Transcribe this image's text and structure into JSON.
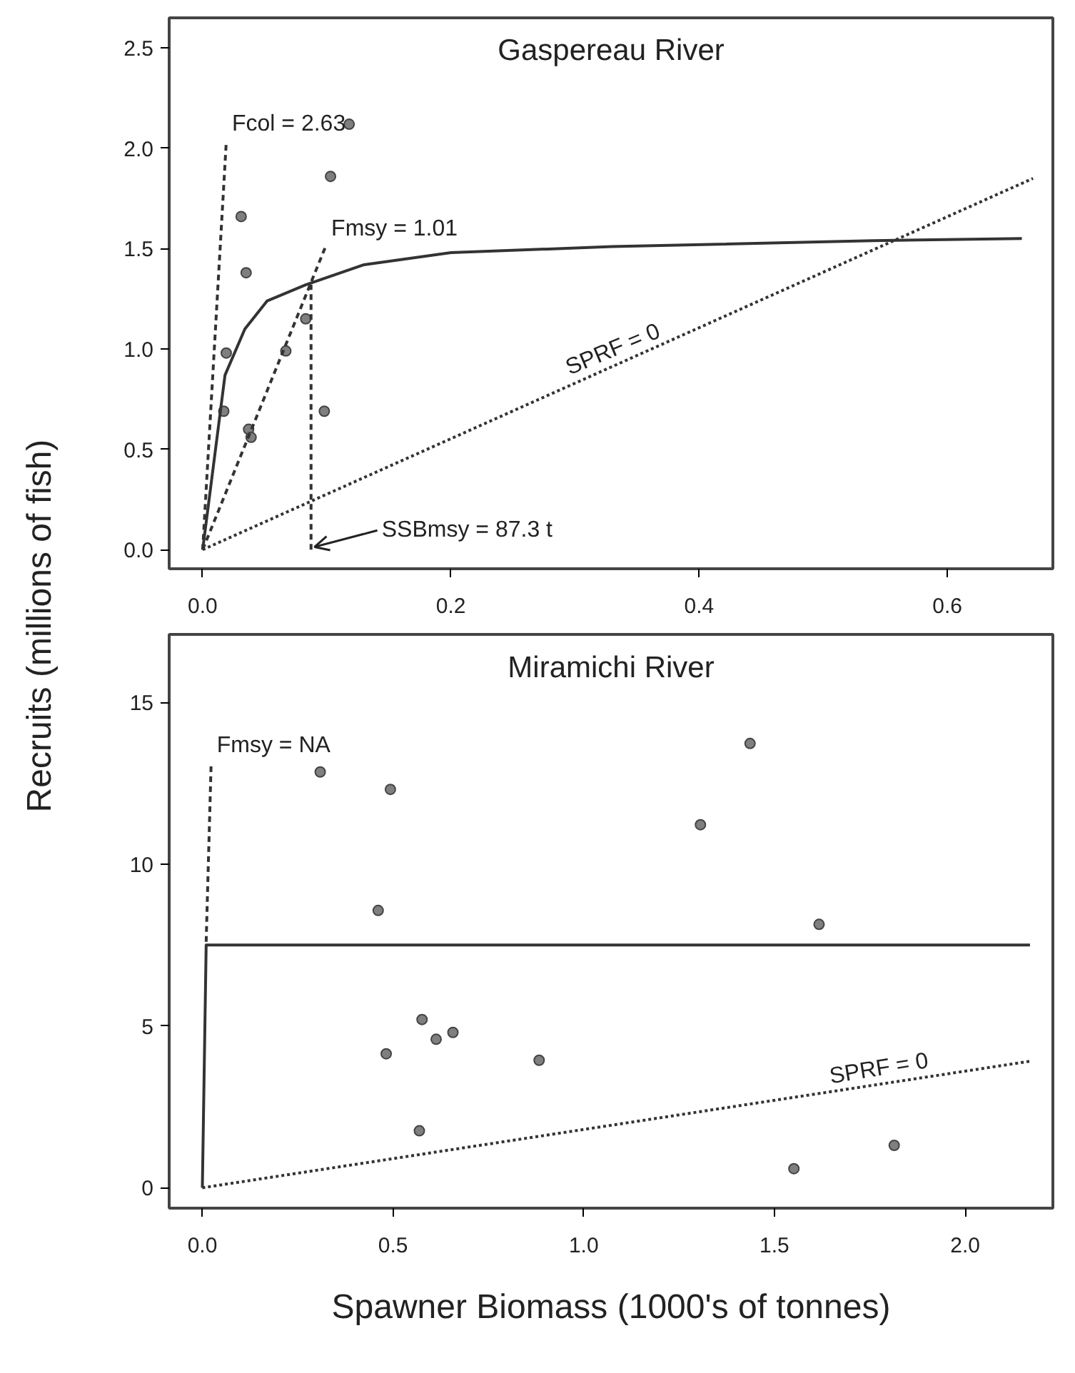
{
  "chart_data": [
    {
      "type": "scatter",
      "title": "Gaspereau River",
      "ylabel": "Recruits (millions of fish)",
      "xlim": [
        -0.027,
        0.685
      ],
      "ylim": [
        -0.095,
        2.65
      ],
      "xticks": [
        {
          "value": 0,
          "label": "0.0"
        },
        {
          "value": 0.2,
          "label": "0.2"
        },
        {
          "value": 0.4,
          "label": "0.4"
        },
        {
          "value": 0.6,
          "label": "0.6"
        }
      ],
      "yticks": [
        {
          "value": 0,
          "label": "0.0"
        },
        {
          "value": 0.5,
          "label": "0.5"
        },
        {
          "value": 1,
          "label": "1.0"
        },
        {
          "value": 1.5,
          "label": "1.5"
        },
        {
          "value": 2,
          "label": "2.0"
        },
        {
          "value": 2.5,
          "label": "2.5"
        }
      ],
      "grid": false,
      "series": [
        {
          "marker": "circle",
          "color": "#7f7f7f",
          "x": [
            0.031,
            0.035,
            0.019,
            0.017,
            0.037,
            0.039,
            0.067,
            0.083,
            0.098,
            0.103,
            0.118
          ],
          "values": [
            1.66,
            1.38,
            0.98,
            0.69,
            0.6,
            0.56,
            0.99,
            1.15,
            0.69,
            1.86,
            2.12
          ]
        },
        {
          "type": "line",
          "line_style": "solid",
          "color": "#333333",
          "x": [
            0,
            0.018,
            0.034,
            0.052,
            0.083,
            0.13,
            0.2,
            0.33,
            0.54,
            0.66
          ],
          "values": [
            0,
            0.87,
            1.1,
            1.24,
            1.32,
            1.42,
            1.48,
            1.51,
            1.54,
            1.55
          ]
        },
        {
          "type": "line",
          "name": "Fcol = 2.63",
          "line_style": "dashed",
          "color": "#333333",
          "x": [
            0,
            0.019
          ],
          "values": [
            0,
            2.03
          ]
        },
        {
          "type": "line",
          "name": "Fmsy = 1.01",
          "line_style": "dashed",
          "color": "#333333",
          "x": [
            0,
            0.099
          ],
          "values": [
            0,
            1.51
          ]
        },
        {
          "type": "line",
          "name": "SSBmsy = 87.3 t",
          "line_style": "dashed",
          "color": "#333333",
          "x": [
            0.0873,
            0.0873
          ],
          "values": [
            0,
            1.32
          ]
        },
        {
          "type": "line",
          "name": "SPRF = 0",
          "line_style": "dotted",
          "color": "#333333",
          "x": [
            0,
            0.669
          ],
          "values": [
            0,
            1.85
          ]
        }
      ]
    },
    {
      "type": "scatter",
      "title": "Miramichi River",
      "xlabel": "Spawner Biomass (1000's of tonnes)",
      "xlim": [
        -0.087,
        2.23
      ],
      "ylim": [
        -0.63,
        17.1
      ],
      "xticks": [
        {
          "value": 0,
          "label": "0.0"
        },
        {
          "value": 0.5,
          "label": "0.5"
        },
        {
          "value": 1,
          "label": "1.0"
        },
        {
          "value": 1.5,
          "label": "1.5"
        },
        {
          "value": 2,
          "label": "2.0"
        }
      ],
      "yticks": [
        0,
        5,
        10,
        15
      ],
      "grid": false,
      "series": [
        {
          "marker": "circle",
          "color": "#7f7f7f",
          "x": [
            0.309,
            0.493,
            0.461,
            0.482,
            0.576,
            0.613,
            0.657,
            0.569,
            0.883,
            1.306,
            1.436,
            1.617,
            1.551,
            1.814
          ],
          "values": [
            12.85,
            12.31,
            8.57,
            4.14,
            5.2,
            4.59,
            4.8,
            1.76,
            3.94,
            11.22,
            13.73,
            8.14,
            0.59,
            1.31
          ]
        },
        {
          "type": "line",
          "line_style": "solid",
          "color": "#333333",
          "x": [
            0,
            0.01,
            2.17
          ],
          "values": [
            0,
            7.5,
            7.5
          ]
        },
        {
          "type": "line",
          "name": "Fmsy = NA",
          "line_style": "dashed",
          "color": "#333333",
          "x": [
            0.01,
            0.023
          ],
          "values": [
            7.6,
            13.1
          ]
        },
        {
          "type": "line",
          "name": "SPRF = 0",
          "line_style": "dotted",
          "color": "#333333",
          "x": [
            0,
            2.17
          ],
          "values": [
            0,
            3.91
          ]
        }
      ]
    }
  ]
}
